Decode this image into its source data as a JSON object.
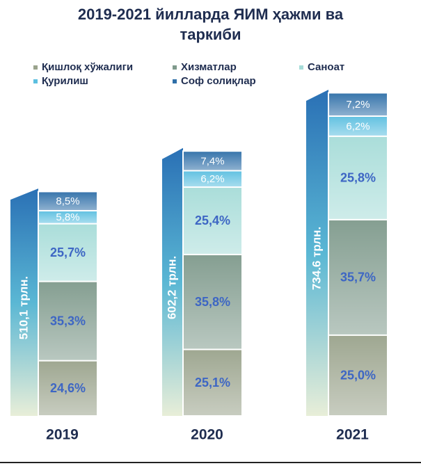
{
  "chart_data": {
    "type": "stacked-bar",
    "title": "2019-2021 йилларда ЯИМ ҳажми ва таркиби",
    "categories": [
      "2019",
      "2020",
      "2021"
    ],
    "series": [
      {
        "name": "Қишлоқ хўжалиги",
        "color": "#9aa38c",
        "values": [
          24.6,
          25.1,
          25.0
        ],
        "value_labels": [
          "24,6%",
          "25,1%",
          "25,0%"
        ]
      },
      {
        "name": "Хизматлар",
        "color": "#7f9a8c",
        "values": [
          35.3,
          35.8,
          35.7
        ],
        "value_labels": [
          "35,3%",
          "35,8%",
          "35,7%"
        ]
      },
      {
        "name": "Саноат",
        "color": "#a6dcd8",
        "values": [
          25.7,
          25.4,
          25.8
        ],
        "value_labels": [
          "25,7%",
          "25,4%",
          "25,8%"
        ]
      },
      {
        "name": "Қурилиш",
        "color": "#5cbfe0",
        "values": [
          5.8,
          6.2,
          6.2
        ],
        "value_labels": [
          "5,8%",
          "6,2%",
          "6,2%"
        ]
      },
      {
        "name": "Соф солиқлар",
        "color": "#2f6fa8",
        "values": [
          8.5,
          7.4,
          7.2
        ],
        "value_labels": [
          "8,5%",
          "7,4%",
          "7,2%"
        ]
      }
    ],
    "totals": {
      "values": [
        510.1,
        602.2,
        734.6
      ],
      "value_labels": [
        "510,1 трлн.",
        "602,2 трлн.",
        "734.6 трлн."
      ]
    }
  }
}
